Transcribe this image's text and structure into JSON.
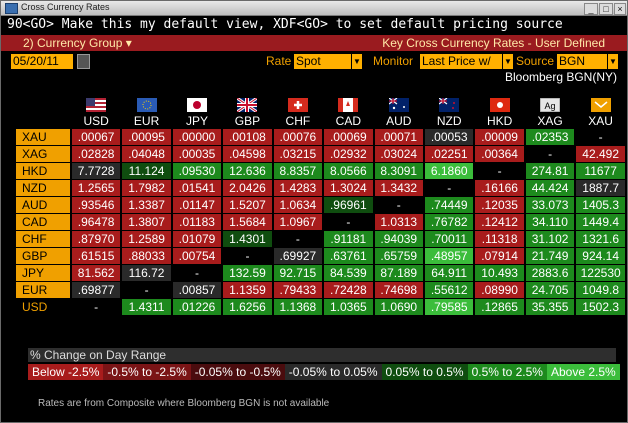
{
  "window": {
    "title": "Cross Currency Rates"
  },
  "command_line": "90<GO> Make this my default view, XDF<GO> to set default pricing source",
  "header": {
    "group_label": "2) Currency Group",
    "title": "Key Cross Currency Rates - User Defined"
  },
  "controls": {
    "date": "05/20/11",
    "rate_label": "Rate",
    "rate_value": "Spot",
    "monitor_label": "Monitor",
    "monitor_value": "Last Price w/",
    "source_label": "Source",
    "source_value": "BGN",
    "source_name": "Bloomberg BGN(NY)"
  },
  "columns": [
    "USD",
    "EUR",
    "JPY",
    "GBP",
    "CHF",
    "CAD",
    "AUD",
    "NZD",
    "HKD",
    "XAG",
    "XAU"
  ],
  "rows": [
    {
      "name": "XAU",
      "cells": [
        ".00067",
        ".00095",
        ".00000",
        ".00108",
        ".00076",
        ".00069",
        ".00071",
        ".00053",
        ".00009",
        ".02353",
        "-"
      ],
      "styles": [
        "r",
        "r",
        "r",
        "r",
        "r",
        "r",
        "r",
        "dk",
        "r",
        "g",
        "k"
      ]
    },
    {
      "name": "XAG",
      "cells": [
        ".02828",
        ".04048",
        ".00035",
        ".04598",
        ".03215",
        ".02932",
        ".03024",
        ".02251",
        ".00364",
        "-",
        "42.492"
      ],
      "styles": [
        "r",
        "r",
        "r",
        "r",
        "r",
        "r",
        "r",
        "r",
        "r",
        "k",
        "r"
      ]
    },
    {
      "name": "HKD",
      "cells": [
        "7.7728",
        "11.124",
        ".09530",
        "12.636",
        "8.8357",
        "8.0566",
        "8.3091",
        "6.1860",
        "-",
        "274.81",
        "11677"
      ],
      "styles": [
        "dk",
        "dg",
        "g",
        "g",
        "g",
        "g",
        "g",
        "lg",
        "k",
        "g",
        "g"
      ]
    },
    {
      "name": "NZD",
      "cells": [
        "1.2565",
        "1.7982",
        ".01541",
        "2.0426",
        "1.4283",
        "1.3024",
        "1.3432",
        "-",
        ".16166",
        "44.424",
        "1887.7"
      ],
      "styles": [
        "r",
        "r",
        "r",
        "r",
        "r",
        "r",
        "r",
        "k",
        "r",
        "g",
        "dk"
      ]
    },
    {
      "name": "AUD",
      "cells": [
        ".93546",
        "1.3387",
        ".01147",
        "1.5207",
        "1.0634",
        ".96961",
        "-",
        ".74449",
        ".12035",
        "33.073",
        "1405.3"
      ],
      "styles": [
        "r",
        "r",
        "r",
        "r",
        "r",
        "dg",
        "k",
        "g",
        "r",
        "g",
        "g"
      ]
    },
    {
      "name": "CAD",
      "cells": [
        ".96478",
        "1.3807",
        ".01183",
        "1.5684",
        "1.0967",
        "-",
        "1.0313",
        ".76782",
        ".12412",
        "34.110",
        "1449.4"
      ],
      "styles": [
        "r",
        "r",
        "r",
        "r",
        "r",
        "k",
        "r",
        "g",
        "r",
        "g",
        "g"
      ]
    },
    {
      "name": "CHF",
      "cells": [
        ".87970",
        "1.2589",
        ".01079",
        "1.4301",
        "-",
        ".91181",
        ".94039",
        ".70011",
        ".11318",
        "31.102",
        "1321.6"
      ],
      "styles": [
        "r",
        "r",
        "r",
        "dg",
        "k",
        "g",
        "g",
        "g",
        "r",
        "g",
        "g"
      ]
    },
    {
      "name": "GBP",
      "cells": [
        ".61515",
        ".88033",
        ".00754",
        "-",
        ".69927",
        ".63761",
        ".65759",
        ".48957",
        ".07914",
        "21.749",
        "924.14"
      ],
      "styles": [
        "r",
        "r",
        "r",
        "k",
        "dk",
        "g",
        "g",
        "lg",
        "r",
        "g",
        "g"
      ]
    },
    {
      "name": "JPY",
      "cells": [
        "81.562",
        "116.72",
        "-",
        "132.59",
        "92.715",
        "84.539",
        "87.189",
        "64.911",
        "10.493",
        "2883.6",
        "122530"
      ],
      "styles": [
        "r",
        "dk",
        "k",
        "g",
        "g",
        "g",
        "g",
        "g",
        "g",
        "g",
        "g"
      ]
    },
    {
      "name": "EUR",
      "cells": [
        ".69877",
        "-",
        ".00857",
        "1.1359",
        ".79433",
        ".72428",
        ".74698",
        ".55612",
        ".08990",
        "24.705",
        "1049.8"
      ],
      "styles": [
        "dk",
        "k",
        "dk",
        "r",
        "r",
        "r",
        "r",
        "g",
        "r",
        "g",
        "g"
      ]
    },
    {
      "name": "USD",
      "cells": [
        "-",
        "1.4311",
        ".01226",
        "1.6256",
        "1.1368",
        "1.0365",
        "1.0690",
        ".79585",
        ".12865",
        "35.355",
        "1502.3"
      ],
      "styles": [
        "k",
        "g",
        "g",
        "g",
        "g",
        "g",
        "g",
        "lg",
        "g",
        "g",
        "g"
      ]
    }
  ],
  "legend": {
    "title": "% Change on Day Range",
    "items": [
      {
        "label": "Below -2.5%",
        "color": "#a81c1c"
      },
      {
        "label": "-0.5% to -2.5%",
        "color": "#7a1416"
      },
      {
        "label": "-0.05% to -0.5%",
        "color": "#4a0c0e"
      },
      {
        "label": "-0.05% to 0.05%",
        "color": "#2a2a2a"
      },
      {
        "label": "0.05% to 0.5%",
        "color": "#0f4d0f"
      },
      {
        "label": "0.5% to 2.5%",
        "color": "#1d8a1d"
      },
      {
        "label": "Above 2.5%",
        "color": "#3bbd3b"
      }
    ]
  },
  "footer": "Rates are from Composite where Bloomberg BGN is not available"
}
